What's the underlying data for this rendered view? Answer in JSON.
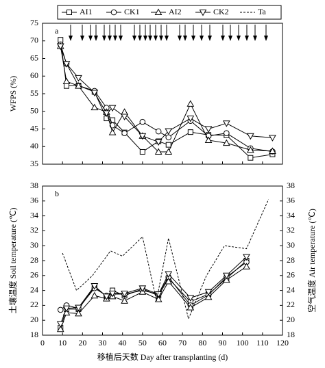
{
  "chart_data": [
    {
      "type": "line",
      "panel_label": "a",
      "ylabel": "WFPS (%)",
      "x": [
        9,
        12,
        18,
        26,
        32,
        35,
        41,
        50,
        58,
        63,
        74,
        83,
        92,
        104,
        115
      ],
      "xlim": [
        0,
        120
      ],
      "xticks": [
        0,
        10,
        20,
        30,
        40,
        50,
        60,
        70,
        80,
        90,
        100,
        110,
        120
      ],
      "ylim": [
        35,
        75
      ],
      "yticks": [
        35,
        40,
        45,
        50,
        55,
        60,
        65,
        70,
        75
      ],
      "series": [
        {
          "marker": "square",
          "color": "#000000",
          "values": [
            70.3,
            57.2,
            57.3,
            55.5,
            48,
            47.5,
            44,
            38.5,
            41.5,
            40.5,
            44.1,
            43.3,
            43.2,
            36.8,
            37.8
          ]
        },
        {
          "marker": "circle",
          "color": "#000000",
          "values": [
            69,
            63.5,
            57.3,
            55.8,
            51,
            46,
            43.8,
            47,
            44.3,
            42.6,
            47.3,
            43,
            43.8,
            39.5,
            38.6
          ]
        },
        {
          "marker": "triangle",
          "color": "#000000",
          "values": [
            68.5,
            58.5,
            57.2,
            51.1,
            49.8,
            44,
            49.8,
            43,
            38.5,
            38.5,
            52.1,
            41.8,
            41,
            39,
            38.7
          ]
        },
        {
          "marker": "triangle-down",
          "color": "#000000",
          "values": [
            68.5,
            63.5,
            59.5,
            55.3,
            49.5,
            51,
            48.5,
            43,
            41.3,
            44.4,
            48,
            45,
            46.6,
            43,
            42.5
          ]
        }
      ]
    },
    {
      "type": "line",
      "panel_label": "b",
      "ylabel": "土壤温度 Soil temperature (℃)",
      "y2label": "空气温度 Air temperature (℃)",
      "xlabel": "移植后天数 Day after transplanting (d)",
      "x": [
        9,
        12,
        18,
        26,
        32,
        35,
        41,
        50,
        58,
        63,
        74,
        83,
        92,
        102
      ],
      "xlim": [
        0,
        120
      ],
      "xticks": [
        0,
        10,
        20,
        30,
        40,
        50,
        60,
        70,
        80,
        90,
        100,
        110,
        120
      ],
      "ylim": [
        18,
        38
      ],
      "yticks": [
        18,
        20,
        22,
        24,
        26,
        28,
        30,
        32,
        34,
        36,
        38
      ],
      "y2lim": [
        18,
        38
      ],
      "y2ticks": [
        18,
        20,
        22,
        24,
        26,
        28,
        30,
        32,
        34,
        36,
        38
      ],
      "series": [
        {
          "name": "AI1",
          "marker": "square",
          "color": "#000000",
          "values": [
            19,
            21.5,
            21.5,
            24.5,
            23.2,
            24,
            23.3,
            24.2,
            23.3,
            25.6,
            22.5,
            23.5,
            25.6,
            28
          ]
        },
        {
          "name": "CK1",
          "marker": "circle",
          "color": "#000000",
          "values": [
            21.4,
            22,
            21.6,
            24.3,
            23.3,
            23.5,
            23.5,
            24,
            23.5,
            25.8,
            22,
            23.4,
            25.8,
            27.8
          ]
        },
        {
          "name": "AI2",
          "marker": "triangle",
          "color": "#000000",
          "values": [
            18.8,
            21,
            20.9,
            23.3,
            22.9,
            23.2,
            22.6,
            23.8,
            22.8,
            25.2,
            21.7,
            23.1,
            25.4,
            27.2
          ]
        },
        {
          "name": "CK2",
          "marker": "triangle-down",
          "color": "#000000",
          "values": [
            19.5,
            21.6,
            21.7,
            24.6,
            23.2,
            23.6,
            23.6,
            24.3,
            23.5,
            26.2,
            23,
            23.8,
            26,
            28.5
          ]
        },
        {
          "name": "Ta",
          "marker": "none",
          "dashed": true,
          "axis": "y2",
          "color": "#000000",
          "x": [
            10,
            17,
            25,
            34,
            40,
            50,
            57,
            63,
            73,
            82,
            91,
            102,
            113
          ],
          "values": [
            29,
            24,
            26,
            29.3,
            28.6,
            31.2,
            22.6,
            31,
            20.2,
            26,
            30,
            29.6,
            36.2
          ]
        }
      ]
    }
  ]
}
